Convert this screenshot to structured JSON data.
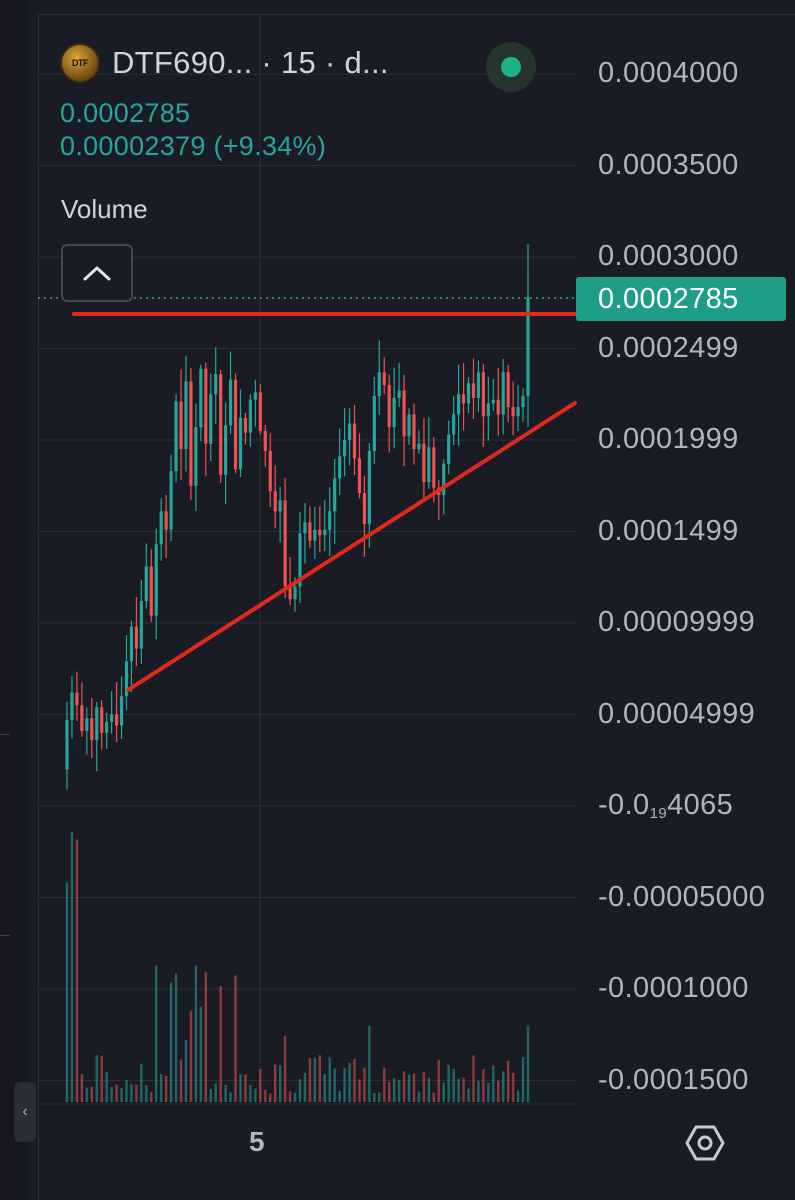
{
  "legend": {
    "symbol": "DTF690... · 15 · d...",
    "logo_text": "DTF",
    "price": "0.0002785",
    "change": "0.00002379 (+9.34%)",
    "volume_label": "Volume"
  },
  "icons": {
    "logo": "coin-logo-icon",
    "live": "live-status-icon",
    "collapse": "chevron-up-icon",
    "settings": "settings-icon",
    "side_collapse": "chevron-left-icon"
  },
  "side_tab_glyph": "‹",
  "price_axis": {
    "labels": [
      "0.0004000",
      "0.0003500",
      "0.0003000",
      "0.0002499",
      "0.0001999",
      "0.0001499",
      "0.00009999",
      "0.00004999",
      "-0.0",
      "-0.00005000",
      "-0.0001000",
      "-0.0001500"
    ],
    "special_label": {
      "prefix": "-0.0",
      "subscript": "19",
      "suffix": "4065"
    },
    "current_price_tag": "0.0002785"
  },
  "time_axis": {
    "labels": [
      "5"
    ]
  },
  "annotations": {
    "resistance_color": "#e0291d",
    "support_color": "#e0291d"
  },
  "colors": {
    "up": "#26a69a",
    "down": "#ef5350",
    "background": "#191b25",
    "grid": "#2a2e39"
  },
  "chart_data": {
    "type": "candlestick",
    "series_close": [
      4.7e-05,
      6.2e-05,
      5.5e-05,
      4.1e-05,
      4.8e-05,
      3.6e-05,
      5.4e-05,
      4e-05,
      4.6e-05,
      5e-05,
      4.4e-05,
      6e-05,
      7.9e-05,
      9.8e-05,
      8.6e-05,
      0.000112,
      0.000131,
      0.000104,
      0.000143,
      0.000161,
      0.000151,
      0.000183,
      0.000221,
      0.000195,
      0.000232,
      0.000175,
      0.000207,
      0.000239,
      0.000198,
      0.000225,
      0.000236,
      0.000181,
      0.000208,
      0.000233,
      0.000184,
      0.000212,
      0.000204,
      0.000222,
      0.000226,
      0.000205,
      0.000194,
      0.000172,
      0.000161,
      0.000167,
      0.00012,
      0.000113,
      0.00012,
      0.000149,
      0.000155,
      0.000145,
      0.000151,
      0.000148,
      0.000151,
      0.000161,
      0.000179,
      0.000191,
      0.0002,
      0.000209,
      0.00019,
      0.000171,
      0.000154,
      0.000194,
      0.000224,
      0.000237,
      0.00023,
      0.000207,
      0.000223,
      0.000227,
      0.000202,
      0.000214,
      0.000195,
      0.000198,
      0.000177,
      0.000196,
      0.000174,
      0.00017,
      0.000187,
      0.000203,
      0.000214,
      0.000225,
      0.00022,
      0.000231,
      0.000223,
      0.000237,
      0.000213,
      0.00022,
      0.000222,
      0.000214,
      0.000237,
      0.000218,
      0.000213,
      0.000218,
      0.000224,
      0.000278
    ]
  }
}
